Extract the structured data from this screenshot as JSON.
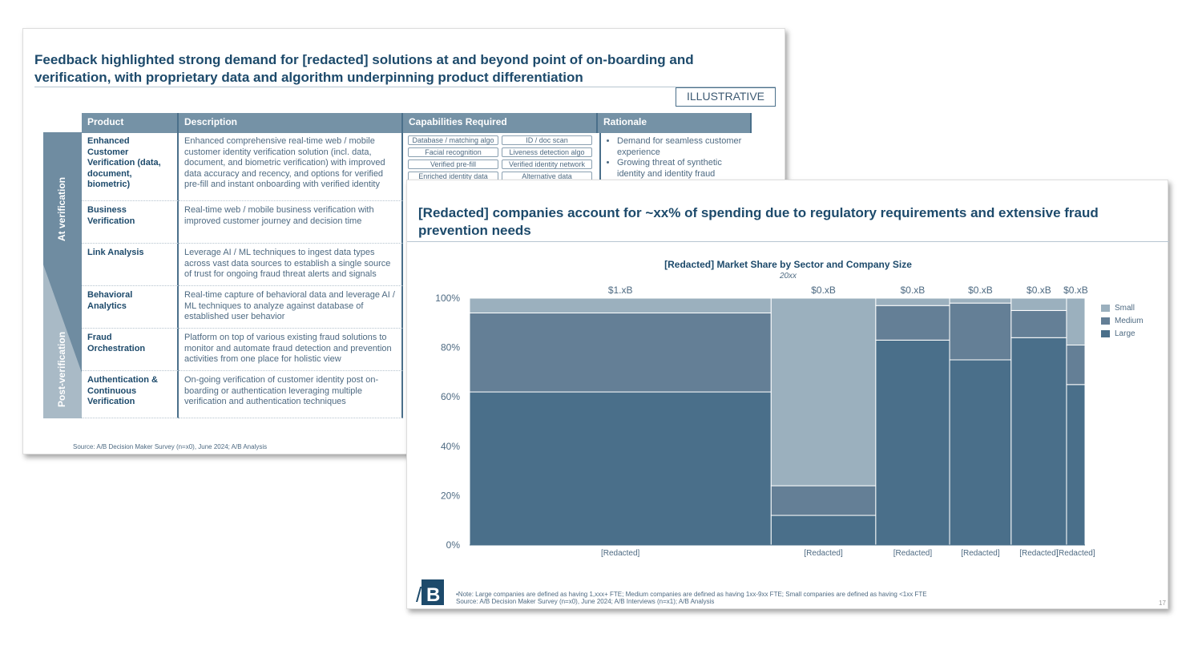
{
  "slide1": {
    "title": "Feedback highlighted strong demand for [redacted] solutions at and beyond point of on-boarding and verification, with proprietary data and algorithm underpinning product differentiation",
    "badge": "ILLUSTRATIVE",
    "headers": [
      "Product",
      "Description",
      "Capabilities Required",
      "Rationale"
    ],
    "phases": [
      "At verification",
      "Post-verification"
    ],
    "rows": [
      {
        "product": "Enhanced Customer Verification (data, document, biometric)",
        "description": "Enhanced comprehensive real-time web / mobile customer identity verification solution (incl. data, document, and biometric verification) with improved data accuracy and recency, and options for verified pre-fill and instant onboarding with verified identity"
      },
      {
        "product": "Business Verification",
        "description": "Real-time web / mobile business verification with improved customer journey and decision time"
      },
      {
        "product": "Link Analysis",
        "description": "Leverage AI / ML techniques to ingest data types across vast data sources to establish a single source of trust for ongoing fraud threat alerts and signals"
      },
      {
        "product": "Behavioral Analytics",
        "description": "Real-time capture of behavioral data and leverage AI / ML techniques to analyze against database of established user behavior"
      },
      {
        "product": "Fraud Orchestration",
        "description": "Platform on top of various existing fraud solutions to monitor and automate fraud detection and prevention activities from one place for holistic view"
      },
      {
        "product": "Authentication & Continuous Verification",
        "description": "On-going verification of customer identity post on-boarding or authentication leveraging multiple verification and authentication techniques"
      }
    ],
    "capabilities": [
      "Database / matching algo",
      "ID / doc scan",
      "Facial recognition",
      "Liveness detection algo",
      "Verified pre-fill",
      "Verified identity network",
      "Enriched identity data",
      "Alternative data"
    ],
    "rationale": [
      "Demand for seamless customer experience",
      "Growing threat of synthetic identity and identity fraud"
    ],
    "source": "Source: A/B Decision Maker Survey (n=x0), June 2024; A/B Analysis"
  },
  "slide2": {
    "title": "[Redacted] companies account for ~xx% of spending due to regulatory requirements and extensive fraud prevention needs",
    "note": "•Note: Large companies are defined as having 1,xxx+ FTE; Medium companies are defined as having 1xx-9xx FTE; Small companies are defined as having <1xx FTE",
    "source": "Source: A/B Decision Maker Survey (n=x0), June 2024; A/B Interviews (n=x1); A/B Analysis",
    "page": "17",
    "logo": "A/B"
  },
  "chart_data": {
    "type": "mekko",
    "title": "[Redacted] Market Share by Sector and Company Size",
    "subtitle": "20xx",
    "categories": [
      "[Redacted]",
      "[Redacted]",
      "[Redacted]",
      "[Redacted]",
      "[Redacted]",
      "[Redacted]"
    ],
    "column_totals": [
      "$1.xB",
      "$0.xB",
      "$0.xB",
      "$0.xB",
      "$0.xB",
      "$0.xB"
    ],
    "column_width_share_pct": [
      49,
      17,
      12,
      10,
      9,
      3
    ],
    "yticks": [
      "0%",
      "20%",
      "40%",
      "60%",
      "80%",
      "100%"
    ],
    "ylim": [
      0,
      100
    ],
    "legend_position": "right",
    "series": [
      {
        "name": "Large",
        "color": "#4a6f8a",
        "values": [
          62,
          12,
          83,
          75,
          84,
          65
        ]
      },
      {
        "name": "Medium",
        "color": "#647f96",
        "values": [
          32,
          12,
          14,
          23,
          11,
          16
        ]
      },
      {
        "name": "Small",
        "color": "#9bb0be",
        "values": [
          6,
          76,
          3,
          2,
          5,
          19
        ]
      }
    ]
  }
}
